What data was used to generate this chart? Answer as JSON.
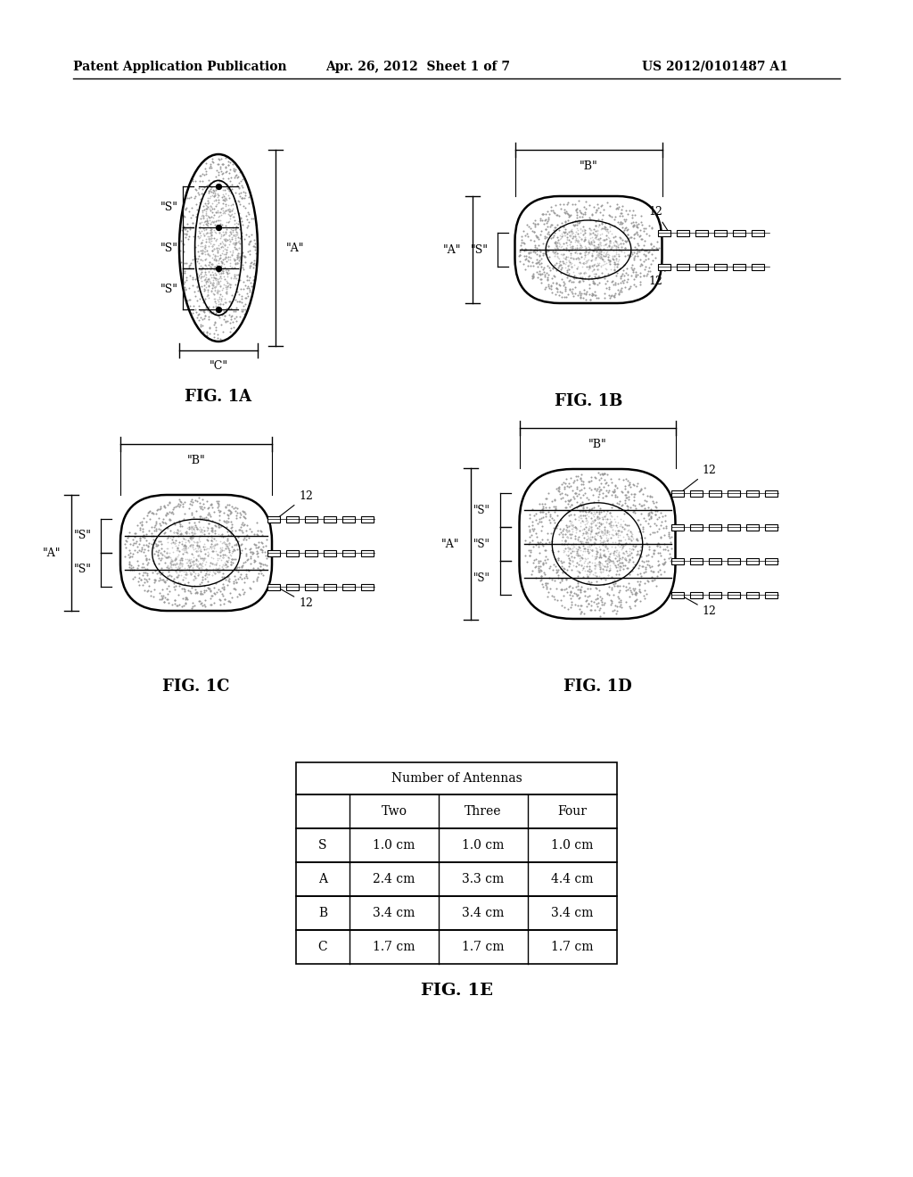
{
  "header_left": "Patent Application Publication",
  "header_mid": "Apr. 26, 2012  Sheet 1 of 7",
  "header_right": "US 2012/0101487 A1",
  "fig1a_label": "FIG. 1A",
  "fig1b_label": "FIG. 1B",
  "fig1c_label": "FIG. 1C",
  "fig1d_label": "FIG. 1D",
  "fig1e_label": "FIG. 1E",
  "table_title": "Number of Antennas",
  "table_col_headers": [
    "Two",
    "Three",
    "Four"
  ],
  "table_rows": [
    [
      "S",
      "1.0 cm",
      "1.0 cm",
      "1.0 cm"
    ],
    [
      "A",
      "2.4 cm",
      "3.3 cm",
      "4.4 cm"
    ],
    [
      "B",
      "3.4 cm",
      "3.4 cm",
      "3.4 cm"
    ],
    [
      "C",
      "1.7 cm",
      "1.7 cm",
      "1.7 cm"
    ]
  ],
  "bg_color": "#ffffff"
}
